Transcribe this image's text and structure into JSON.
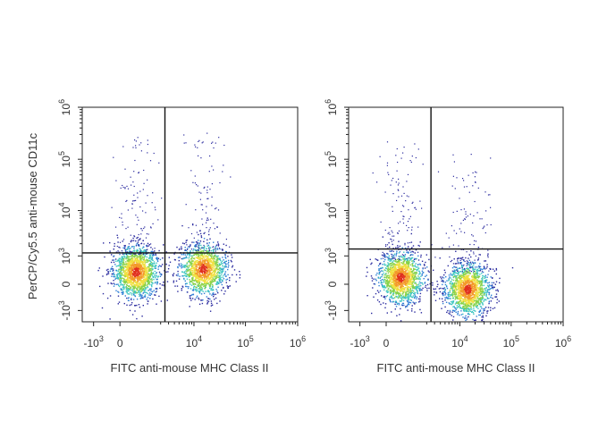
{
  "chart_data": [
    {
      "type": "scatter",
      "title": "",
      "xlabel": "FITC anti-mouse  MHC Class II",
      "ylabel": "PerCP/Cy5.5 anti-mouse CD11c",
      "x_scale": "biexponential",
      "y_scale": "biexponential",
      "xlim": [
        -2000,
        1000000
      ],
      "ylim": [
        -2000,
        1000000
      ],
      "x_ticks": [
        {
          "value": -1000,
          "base": "-10",
          "exp": "3"
        },
        {
          "value": 0,
          "base": "0",
          "exp": ""
        },
        {
          "value": 10000,
          "base": "10",
          "exp": "4"
        },
        {
          "value": 100000,
          "base": "10",
          "exp": "5"
        },
        {
          "value": 1000000,
          "base": "10",
          "exp": "6"
        }
      ],
      "y_ticks": [
        {
          "value": -1000,
          "base": "-10",
          "exp": "3"
        },
        {
          "value": 0,
          "base": "0",
          "exp": ""
        },
        {
          "value": 1000,
          "base": "10",
          "exp": "3"
        },
        {
          "value": 10000,
          "base": "10",
          "exp": "4"
        },
        {
          "value": 100000,
          "base": "10",
          "exp": "5"
        },
        {
          "value": 1000000,
          "base": "10",
          "exp": "6"
        }
      ],
      "quadrant_gate": {
        "x": 2500,
        "y": 1200
      },
      "populations": [
        {
          "x_center": 400,
          "y_center": 300,
          "relative_size": 0.55
        },
        {
          "x_center": 15000,
          "y_center": 400,
          "relative_size": 0.45
        }
      ],
      "density_colors": [
        "#2a2a9e",
        "#2f7fd6",
        "#3cc6c0",
        "#86d24a",
        "#f0e040",
        "#f39a2a",
        "#e0301e"
      ]
    },
    {
      "type": "scatter",
      "title": "",
      "xlabel": "FITC anti-mouse  MHC Class II",
      "ylabel": "",
      "x_scale": "biexponential",
      "y_scale": "biexponential",
      "xlim": [
        -2000,
        1000000
      ],
      "ylim": [
        -2000,
        1000000
      ],
      "x_ticks": [
        {
          "value": -1000,
          "base": "-10",
          "exp": "3"
        },
        {
          "value": 0,
          "base": "0",
          "exp": ""
        },
        {
          "value": 10000,
          "base": "10",
          "exp": "4"
        },
        {
          "value": 100000,
          "base": "10",
          "exp": "5"
        },
        {
          "value": 1000000,
          "base": "10",
          "exp": "6"
        }
      ],
      "y_ticks": [
        {
          "value": -1000,
          "base": "-10",
          "exp": "3"
        },
        {
          "value": 0,
          "base": "0",
          "exp": ""
        },
        {
          "value": 1000,
          "base": "10",
          "exp": "3"
        },
        {
          "value": 10000,
          "base": "10",
          "exp": "4"
        },
        {
          "value": 100000,
          "base": "10",
          "exp": "5"
        },
        {
          "value": 1000000,
          "base": "10",
          "exp": "6"
        }
      ],
      "quadrant_gate": {
        "x": 2500,
        "y": 1500
      },
      "populations": [
        {
          "x_center": 350,
          "y_center": 150,
          "relative_size": 0.5
        },
        {
          "x_center": 14000,
          "y_center": -100,
          "relative_size": 0.5
        }
      ],
      "density_colors": [
        "#2a2a9e",
        "#2f7fd6",
        "#3cc6c0",
        "#86d24a",
        "#f0e040",
        "#f39a2a",
        "#e0301e"
      ]
    }
  ]
}
